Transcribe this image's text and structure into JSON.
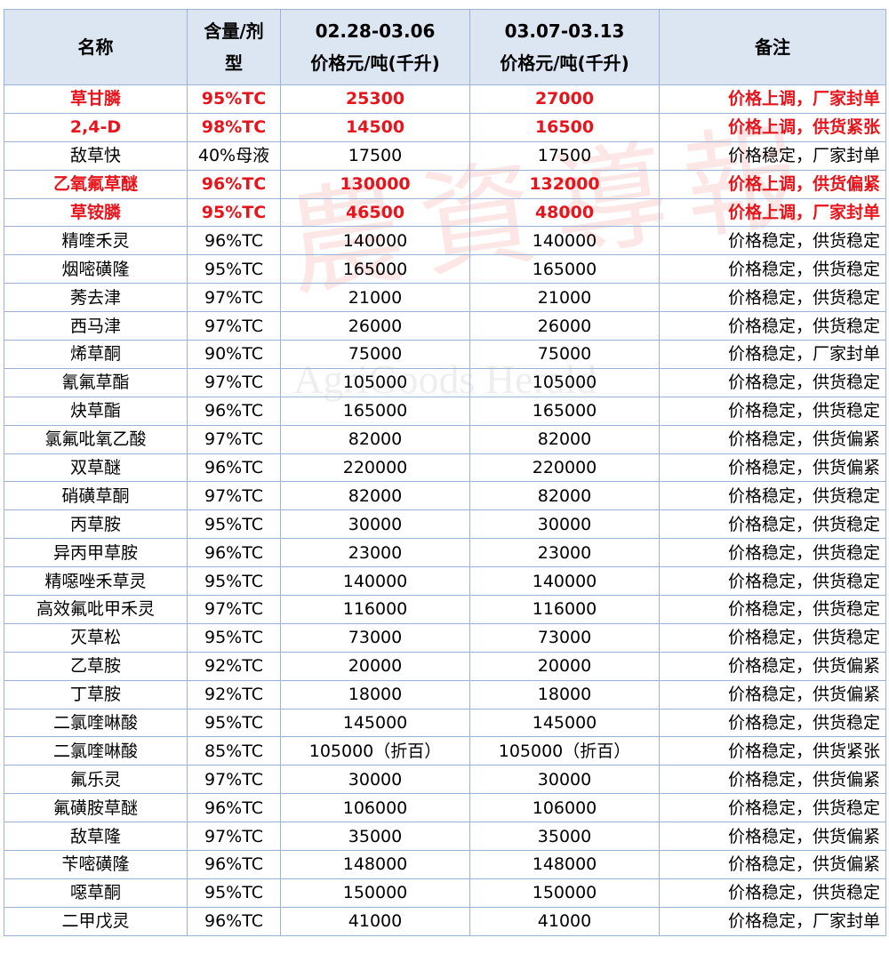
{
  "header": {
    "name": "名称",
    "spec": "含量/剂型",
    "period1": "02.28-03.06",
    "unit1": "价格元/吨(千升)",
    "period2": "03.07-03.13",
    "unit2": "价格元/吨(千升)",
    "note": "备注"
  },
  "watermark": {
    "cn": "農資導報",
    "en": "AgriGoods Herald"
  },
  "table": {
    "rows": [
      {
        "cells": [
          "草甘膦",
          "95%TC",
          "25300",
          "27000",
          "价格上调，厂家封单"
        ],
        "color": "#e8141b"
      },
      {
        "cells": [
          "2,4-D",
          "98%TC",
          "14500",
          "16500",
          "价格上调，供货紧张"
        ],
        "color": "#e8141b"
      },
      {
        "cells": [
          "敌草快",
          "40%母液",
          "17500",
          "17500",
          "价格稳定，厂家封单"
        ],
        "color": "#000000"
      },
      {
        "cells": [
          "乙氧氟草醚",
          "96%TC",
          "130000",
          "132000",
          "价格上调，供货偏紧"
        ],
        "color": "#e8141b"
      },
      {
        "cells": [
          "草铵膦",
          "95%TC",
          "46500",
          "48000",
          "价格上调，厂家封单"
        ],
        "color": "#e8141b"
      },
      {
        "cells": [
          "精喹禾灵",
          "96%TC",
          "140000",
          "140000",
          "价格稳定，供货稳定"
        ],
        "color": "#000000"
      },
      {
        "cells": [
          "烟嘧磺隆",
          "95%TC",
          "165000",
          "165000",
          "价格稳定，供货稳定"
        ],
        "color": "#000000"
      },
      {
        "cells": [
          "莠去津",
          "97%TC",
          "21000",
          "21000",
          "价格稳定，供货稳定"
        ],
        "color": "#000000"
      },
      {
        "cells": [
          "西马津",
          "97%TC",
          "26000",
          "26000",
          "价格稳定，供货稳定"
        ],
        "color": "#000000"
      },
      {
        "cells": [
          "烯草酮",
          "90%TC",
          "75000",
          "75000",
          "价格稳定，厂家封单"
        ],
        "color": "#000000"
      },
      {
        "cells": [
          "氰氟草酯",
          "97%TC",
          "105000",
          "105000",
          "价格稳定，供货稳定"
        ],
        "color": "#000000"
      },
      {
        "cells": [
          "炔草酯",
          "96%TC",
          "165000",
          "165000",
          "价格稳定，供货稳定"
        ],
        "color": "#000000"
      },
      {
        "cells": [
          "氯氟吡氧乙酸",
          "97%TC",
          "82000",
          "82000",
          "价格稳定，供货偏紧"
        ],
        "color": "#000000"
      },
      {
        "cells": [
          "双草醚",
          "96%TC",
          "220000",
          "220000",
          "价格稳定，供货偏紧"
        ],
        "color": "#000000"
      },
      {
        "cells": [
          "硝磺草酮",
          "97%TC",
          "82000",
          "82000",
          "价格稳定，供货稳定"
        ],
        "color": "#000000"
      },
      {
        "cells": [
          "丙草胺",
          "95%TC",
          "30000",
          "30000",
          "价格稳定，供货稳定"
        ],
        "color": "#000000"
      },
      {
        "cells": [
          "异丙甲草胺",
          "96%TC",
          "23000",
          "23000",
          "价格稳定，供货稳定"
        ],
        "color": "#000000"
      },
      {
        "cells": [
          "精噁唑禾草灵",
          "95%TC",
          "140000",
          "140000",
          "价格稳定，供货稳定"
        ],
        "color": "#000000"
      },
      {
        "cells": [
          "高效氟吡甲禾灵",
          "97%TC",
          "116000",
          "116000",
          "价格稳定，供货稳定"
        ],
        "color": "#000000"
      },
      {
        "cells": [
          "灭草松",
          "95%TC",
          "73000",
          "73000",
          "价格稳定，供货稳定"
        ],
        "color": "#000000"
      },
      {
        "cells": [
          "乙草胺",
          "92%TC",
          "20000",
          "20000",
          "价格稳定，供货偏紧"
        ],
        "color": "#000000"
      },
      {
        "cells": [
          "丁草胺",
          "92%TC",
          "18000",
          "18000",
          "价格稳定，供货偏紧"
        ],
        "color": "#000000"
      },
      {
        "cells": [
          "二氯喹啉酸",
          "95%TC",
          "145000",
          "145000",
          "价格稳定，供货稳定"
        ],
        "color": "#000000"
      },
      {
        "cells": [
          "二氯喹啉酸",
          "85%TC",
          "105000（折百）",
          "105000（折百）",
          "价格稳定，供货紧张"
        ],
        "color": "#000000"
      },
      {
        "cells": [
          "氟乐灵",
          "97%TC",
          "30000",
          "30000",
          "价格稳定，供货偏紧"
        ],
        "color": "#000000"
      },
      {
        "cells": [
          "氟磺胺草醚",
          "96%TC",
          "106000",
          "106000",
          "价格稳定，供货稳定"
        ],
        "color": "#000000"
      },
      {
        "cells": [
          "敌草隆",
          "97%TC",
          "35000",
          "35000",
          "价格稳定，供货偏紧"
        ],
        "color": "#000000"
      },
      {
        "cells": [
          "苄嘧磺隆",
          "96%TC",
          "148000",
          "148000",
          "价格稳定，供货偏紧"
        ],
        "color": "#000000"
      },
      {
        "cells": [
          "噁草酮",
          "95%TC",
          "150000",
          "150000",
          "价格稳定，供货稳定"
        ],
        "color": "#000000"
      },
      {
        "cells": [
          "二甲戊灵",
          "96%TC",
          "41000",
          "41000",
          "价格稳定，厂家封单"
        ],
        "color": "#000000"
      }
    ]
  }
}
